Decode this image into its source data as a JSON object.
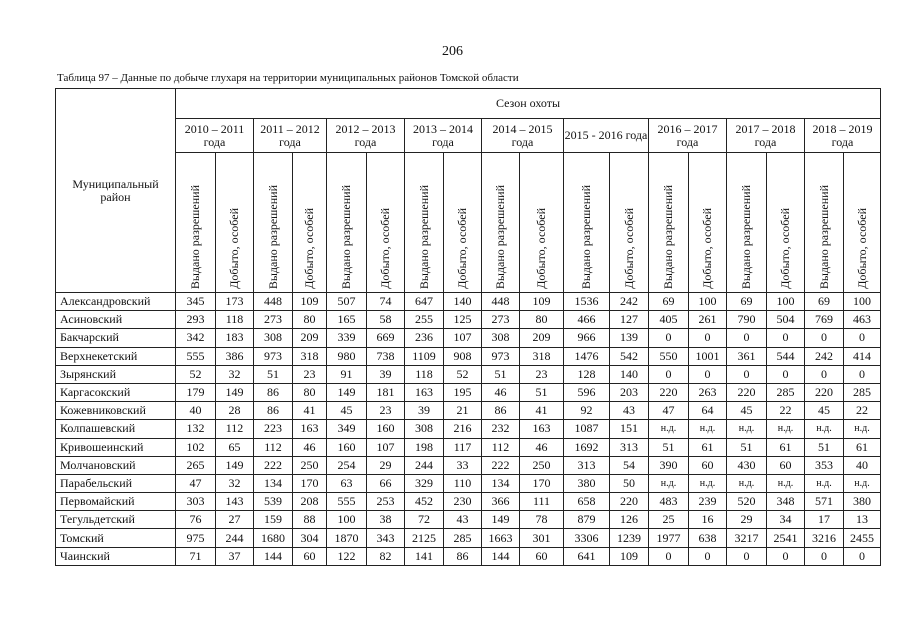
{
  "page_number": "206",
  "caption": "Таблица 97 – Данные по добыче глухаря на территории муниципальных районов Томской области",
  "table": {
    "row_header": "Муниципальный район",
    "group_header": "Сезон охоты",
    "seasons": [
      "2010 – 2011 года",
      "2011 – 2012 года",
      "2012 – 2013 года",
      "2013 – 2014 года",
      "2014 – 2015 года",
      "2015 - 2016 года",
      "2016 – 2017 года",
      "2017 – 2018 года",
      "2018 – 2019 года"
    ],
    "sub_headers": [
      "Выдано разрешений",
      "Добыто, особей"
    ],
    "rows": [
      [
        "Александровский",
        345,
        173,
        448,
        109,
        507,
        74,
        647,
        140,
        448,
        109,
        1536,
        242,
        69,
        100,
        69,
        100,
        69,
        100
      ],
      [
        "Асиновский",
        293,
        118,
        273,
        80,
        165,
        58,
        255,
        125,
        273,
        80,
        466,
        127,
        405,
        261,
        790,
        504,
        769,
        463
      ],
      [
        "Бакчарский",
        342,
        183,
        308,
        209,
        339,
        669,
        236,
        107,
        308,
        209,
        966,
        139,
        0,
        0,
        0,
        0,
        0,
        0
      ],
      [
        "Верхнекетский",
        555,
        386,
        973,
        318,
        980,
        738,
        1109,
        908,
        973,
        318,
        1476,
        542,
        550,
        1001,
        361,
        544,
        242,
        414
      ],
      [
        "Зырянский",
        52,
        32,
        51,
        23,
        91,
        39,
        118,
        52,
        51,
        23,
        128,
        140,
        0,
        0,
        0,
        0,
        0,
        0
      ],
      [
        "Каргасокский",
        179,
        149,
        86,
        80,
        149,
        181,
        163,
        195,
        46,
        51,
        596,
        203,
        220,
        263,
        220,
        285,
        220,
        285
      ],
      [
        "Кожевниковский",
        40,
        28,
        86,
        41,
        45,
        23,
        39,
        21,
        86,
        41,
        92,
        43,
        47,
        64,
        45,
        22,
        45,
        22
      ],
      [
        "Колпашевский",
        132,
        112,
        223,
        163,
        349,
        160,
        308,
        216,
        232,
        163,
        1087,
        151,
        "н.д.",
        "н.д.",
        "н.д.",
        "н.д.",
        "н.д.",
        "н.д."
      ],
      [
        "Кривошеинский",
        102,
        65,
        112,
        46,
        160,
        107,
        198,
        117,
        112,
        46,
        1692,
        313,
        51,
        61,
        51,
        61,
        51,
        61
      ],
      [
        "Молчановский",
        265,
        149,
        222,
        250,
        254,
        29,
        244,
        33,
        222,
        250,
        313,
        54,
        390,
        60,
        430,
        60,
        353,
        40
      ],
      [
        "Парабельский",
        47,
        32,
        134,
        170,
        63,
        66,
        329,
        110,
        134,
        170,
        380,
        50,
        "н.д.",
        "н.д.",
        "н.д.",
        "н.д.",
        "н.д.",
        "н.д."
      ],
      [
        "Первомайский",
        303,
        143,
        539,
        208,
        555,
        253,
        452,
        230,
        366,
        111,
        658,
        220,
        483,
        239,
        520,
        348,
        571,
        380
      ],
      [
        "Тегульдетский",
        76,
        27,
        159,
        88,
        100,
        38,
        72,
        43,
        149,
        78,
        879,
        126,
        25,
        16,
        29,
        34,
        17,
        13
      ],
      [
        "Томский",
        975,
        244,
        1680,
        304,
        1870,
        343,
        2125,
        285,
        1663,
        301,
        3306,
        1239,
        1977,
        638,
        3217,
        2541,
        3216,
        2455
      ],
      [
        "Чаинский",
        71,
        37,
        144,
        60,
        122,
        82,
        141,
        86,
        144,
        60,
        641,
        109,
        0,
        0,
        0,
        0,
        0,
        0
      ]
    ]
  }
}
